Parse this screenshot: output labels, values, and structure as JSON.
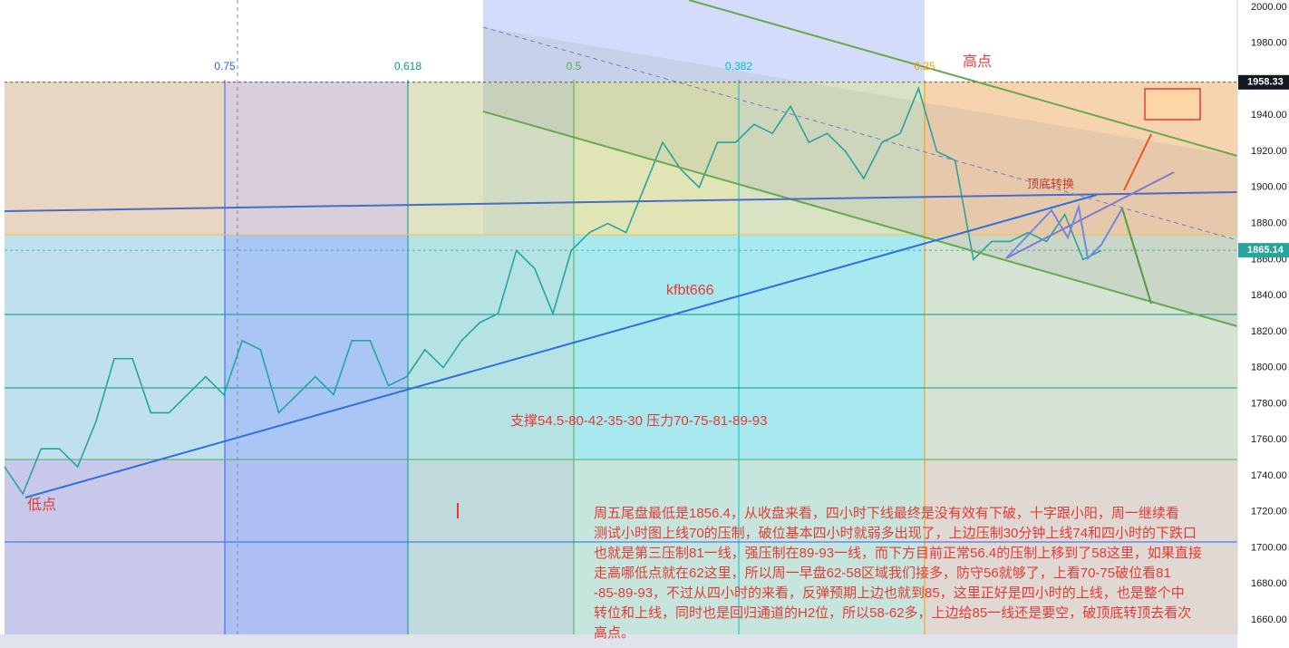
{
  "chart_data": {
    "type": "line",
    "values": [
      1745,
      1730,
      1755,
      1755,
      1745,
      1770,
      1805,
      1805,
      1775,
      1775,
      1785,
      1795,
      1785,
      1815,
      1810,
      1775,
      1785,
      1795,
      1785,
      1815,
      1815,
      1790,
      1795,
      1810,
      1800,
      1815,
      1825,
      1830,
      1865,
      1855,
      1830,
      1865,
      1875,
      1880,
      1875,
      1900,
      1925,
      1910,
      1900,
      1925,
      1925,
      1935,
      1930,
      1945,
      1925,
      1930,
      1920,
      1905,
      1925,
      1930,
      1955,
      1920,
      1915,
      1860,
      1870,
      1870,
      1875,
      1870,
      1885,
      1860,
      1865
    ],
    "color": "#26a69a",
    "ylim": [
      1652,
      2004
    ],
    "yticks": [
      {
        "value": 1660,
        "label": "1660.00"
      },
      {
        "value": 1680,
        "label": "1680.00"
      },
      {
        "value": 1700,
        "label": "1700.00"
      },
      {
        "value": 1720,
        "label": "1720.00"
      },
      {
        "value": 1740,
        "label": "1740.00"
      },
      {
        "value": 1760,
        "label": "1760.00"
      },
      {
        "value": 1780,
        "label": "1780.00"
      },
      {
        "value": 1800,
        "label": "1800.00"
      },
      {
        "value": 1820,
        "label": "1820.00"
      },
      {
        "value": 1840,
        "label": "1840.00"
      },
      {
        "value": 1860,
        "label": "1860.00"
      },
      {
        "value": 1880,
        "label": "1880.00"
      },
      {
        "value": 1900,
        "label": "1900.00"
      },
      {
        "value": 1920,
        "label": "1920.00"
      },
      {
        "value": 1940,
        "label": "1940.00"
      },
      {
        "value": 1960,
        "label": "1960.00"
      },
      {
        "value": 1980,
        "label": "1980.00"
      },
      {
        "value": 2000,
        "label": "2000.00"
      }
    ],
    "price_marks": [
      {
        "value": 1958.33,
        "label": "1958.33",
        "color": "#131722"
      },
      {
        "value": 1865.14,
        "label": "1865.14",
        "color": "#26a69a"
      }
    ],
    "fib_labels": [
      {
        "label": "0.75",
        "color": "#2962ff"
      },
      {
        "label": "0.618",
        "color": "#089981"
      },
      {
        "label": "0.5",
        "color": "#4caf50"
      },
      {
        "label": "0.382",
        "color": "#00bcd4"
      },
      {
        "label": "0.25",
        "color": "#ff9800"
      }
    ],
    "annotations": {
      "high": "高点",
      "low": "低点",
      "flip": "顶底转换",
      "watermark": "kfbt666",
      "levels": "支撑54.5-80-42-35-30   压力70-75-81-89-93"
    },
    "commentary": [
      "周五尾盘最低是1856.4，从收盘来看，四小时下线最终是没有效有下破，十字跟小阳，周一继续看",
      "测试小时图上线70的压制，破位基本四小时就弱多出现了，上边压制30分钟上线74和四小时的下跌口",
      "也就是第三压制81一线，强压制在89-93一线，而下方目前正常56.4的压制上移到了58这里，如果直接",
      "走高哪低点就在62这里，所以周一早盘62-58区域我们接多，防守56就够了，上看70-75破位看81",
      "-85-89-93，不过从四小时的来看，反弹预期上边也就到85，这里正好是四小时的上线，也是整个中",
      "转位和上线，同时也是回归通道的H2位，所以58-62多，上边给85一线还是要空，破顶底转顶去看次",
      "高点。"
    ]
  }
}
